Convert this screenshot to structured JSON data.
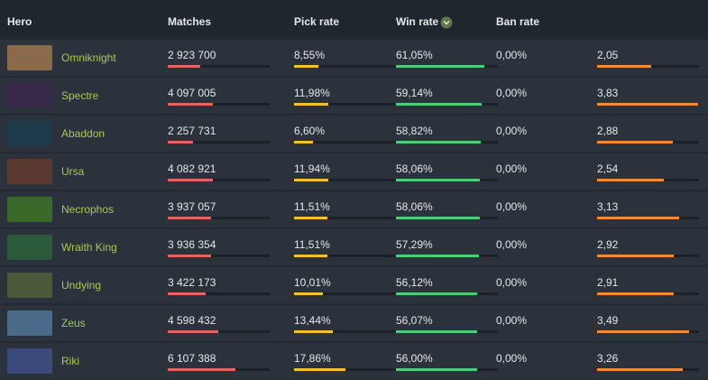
{
  "table": {
    "headers": [
      "Hero",
      "Matches",
      "Pick rate",
      "Win rate",
      "Ban rate"
    ],
    "rows": [
      {
        "hero": "Omniknight",
        "matches": {
          "value": 2923700,
          "label": "2 923 700"
        },
        "pick_rate": {
          "value": 8.55,
          "label": "8,55%"
        },
        "win_rate": {
          "value": 61.05,
          "label": "61,05%"
        },
        "ban_rate": {
          "value": 0,
          "label": "0,00%"
        },
        "score": {
          "value": 2.05,
          "label": "2,05"
        }
      },
      {
        "hero": "Spectre",
        "matches": {
          "value": 4097005,
          "label": "4 097 005"
        },
        "pick_rate": {
          "value": 11.98,
          "label": "11,98%"
        },
        "win_rate": {
          "value": 59.14,
          "label": "59,14%"
        },
        "ban_rate": {
          "value": 0,
          "label": "0,00%"
        },
        "score": {
          "value": 3.83,
          "label": "3,83"
        }
      },
      {
        "hero": "Abaddon",
        "matches": {
          "value": 2257731,
          "label": "2 257 731"
        },
        "pick_rate": {
          "value": 6.6,
          "label": "6,60%"
        },
        "win_rate": {
          "value": 58.82,
          "label": "58,82%"
        },
        "ban_rate": {
          "value": 0,
          "label": "0,00%"
        },
        "score": {
          "value": 2.88,
          "label": "2,88"
        }
      },
      {
        "hero": "Ursa",
        "matches": {
          "value": 4082921,
          "label": "4 082 921"
        },
        "pick_rate": {
          "value": 11.94,
          "label": "11,94%"
        },
        "win_rate": {
          "value": 58.06,
          "label": "58,06%"
        },
        "ban_rate": {
          "value": 0,
          "label": "0,00%"
        },
        "score": {
          "value": 2.54,
          "label": "2,54"
        }
      },
      {
        "hero": "Necrophos",
        "matches": {
          "value": 3937057,
          "label": "3 937 057"
        },
        "pick_rate": {
          "value": 11.51,
          "label": "11,51%"
        },
        "win_rate": {
          "value": 58.06,
          "label": "58,06%"
        },
        "ban_rate": {
          "value": 0,
          "label": "0,00%"
        },
        "score": {
          "value": 3.13,
          "label": "3,13"
        }
      },
      {
        "hero": "Wraith King",
        "matches": {
          "value": 3936354,
          "label": "3 936 354"
        },
        "pick_rate": {
          "value": 11.51,
          "label": "11,51%"
        },
        "win_rate": {
          "value": 57.29,
          "label": "57,29%"
        },
        "ban_rate": {
          "value": 0,
          "label": "0,00%"
        },
        "score": {
          "value": 2.92,
          "label": "2,92"
        }
      },
      {
        "hero": "Undying",
        "matches": {
          "value": 3422173,
          "label": "3 422 173"
        },
        "pick_rate": {
          "value": 10.01,
          "label": "10,01%"
        },
        "win_rate": {
          "value": 56.12,
          "label": "56,12%"
        },
        "ban_rate": {
          "value": 0,
          "label": "0,00%"
        },
        "score": {
          "value": 2.91,
          "label": "2,91"
        }
      },
      {
        "hero": "Zeus",
        "matches": {
          "value": 4598432,
          "label": "4 598 432"
        },
        "pick_rate": {
          "value": 13.44,
          "label": "13,44%"
        },
        "win_rate": {
          "value": 56.07,
          "label": "56,07%"
        },
        "ban_rate": {
          "value": 0,
          "label": "0,00%"
        },
        "score": {
          "value": 3.49,
          "label": "3,49"
        }
      },
      {
        "hero": "Riki",
        "matches": {
          "value": 6107388,
          "label": "6 107 388"
        },
        "pick_rate": {
          "value": 17.86,
          "label": "17,86%"
        },
        "win_rate": {
          "value": 56.0,
          "label": "56,00%"
        },
        "ban_rate": {
          "value": 0,
          "label": "0,00%"
        },
        "score": {
          "value": 3.26,
          "label": "3,26"
        }
      }
    ]
  }
}
